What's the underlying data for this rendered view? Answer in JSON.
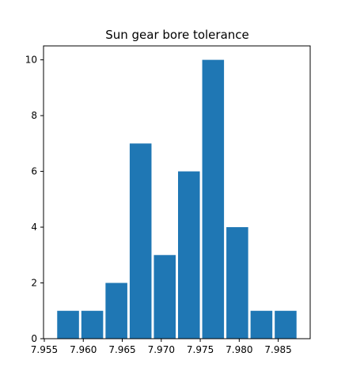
{
  "chart_data": {
    "type": "bar",
    "title": "Sun gear bore tolerance",
    "xlabel": "",
    "ylabel": "",
    "bin_edges": [
      7.9565,
      7.9596,
      7.9627,
      7.9658,
      7.9689,
      7.972,
      7.9751,
      7.9782,
      7.9813,
      7.9844,
      7.9875
    ],
    "values": [
      1,
      1,
      2,
      7,
      3,
      6,
      10,
      4,
      1,
      1
    ],
    "xlim": [
      7.9549,
      7.9891
    ],
    "ylim": [
      0,
      10.5
    ],
    "x_ticks": [
      7.955,
      7.96,
      7.965,
      7.97,
      7.975,
      7.98,
      7.985
    ],
    "x_tick_labels": [
      "7.955",
      "7.960",
      "7.965",
      "7.970",
      "7.975",
      "7.980",
      "7.985"
    ],
    "y_ticks": [
      0,
      2,
      4,
      6,
      8,
      10
    ],
    "y_tick_labels": [
      "0",
      "2",
      "4",
      "6",
      "8",
      "10"
    ],
    "bar_color": "#1f77b4",
    "grid": false
  }
}
